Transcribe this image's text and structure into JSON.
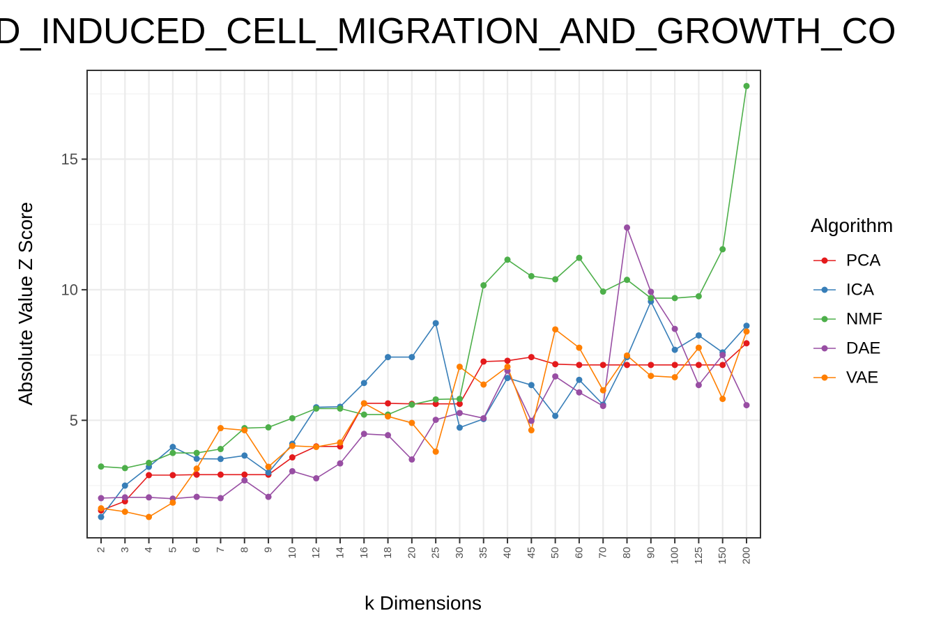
{
  "chart_data": {
    "type": "line",
    "title": "D_INDUCED_CELL_MIGRATION_AND_GROWTH_CO",
    "xlabel": "k Dimensions",
    "ylabel": "Absolute Value Z Score",
    "categories": [
      "2",
      "3",
      "4",
      "5",
      "6",
      "7",
      "8",
      "9",
      "10",
      "12",
      "14",
      "16",
      "18",
      "20",
      "25",
      "30",
      "35",
      "40",
      "45",
      "50",
      "60",
      "70",
      "80",
      "90",
      "100",
      "125",
      "150",
      "200"
    ],
    "y_ticks": [
      5,
      10,
      15
    ],
    "ylim": [
      0.5,
      18.4
    ],
    "grid": true,
    "legend": {
      "title": "Algorithm",
      "position": "right"
    },
    "series": [
      {
        "name": "PCA",
        "color": "#e41a1c",
        "values": [
          1.55,
          1.9,
          2.9,
          2.9,
          2.92,
          2.92,
          2.92,
          2.92,
          3.58,
          4.0,
          4.0,
          5.65,
          5.65,
          5.63,
          5.63,
          5.63,
          7.25,
          7.28,
          7.42,
          7.15,
          7.12,
          7.12,
          7.12,
          7.12,
          7.12,
          7.12,
          7.12,
          7.95
        ]
      },
      {
        "name": "ICA",
        "color": "#377eb8",
        "values": [
          1.3,
          2.5,
          3.22,
          3.98,
          3.53,
          3.52,
          3.65,
          3.0,
          4.1,
          5.5,
          5.52,
          6.43,
          7.42,
          7.42,
          8.72,
          4.72,
          5.05,
          6.62,
          6.35,
          5.17,
          6.55,
          5.6,
          7.42,
          9.55,
          7.7,
          8.25,
          7.6,
          8.62
        ]
      },
      {
        "name": "NMF",
        "color": "#4daf4a",
        "values": [
          3.23,
          3.17,
          3.37,
          3.75,
          3.75,
          3.9,
          4.7,
          4.73,
          5.08,
          5.45,
          5.45,
          5.22,
          5.22,
          5.6,
          5.8,
          5.82,
          10.17,
          11.15,
          10.52,
          10.4,
          11.22,
          9.93,
          10.38,
          9.68,
          9.68,
          9.75,
          11.55,
          17.8
        ]
      },
      {
        "name": "DAE",
        "color": "#984ea3",
        "values": [
          2.02,
          2.05,
          2.05,
          2.0,
          2.07,
          2.02,
          2.7,
          2.07,
          3.05,
          2.78,
          3.35,
          4.48,
          4.43,
          3.5,
          5.02,
          5.28,
          5.08,
          6.9,
          4.98,
          6.68,
          6.07,
          5.55,
          12.38,
          9.92,
          8.5,
          6.35,
          7.5,
          5.58
        ]
      },
      {
        "name": "VAE",
        "color": "#ff7f00",
        "values": [
          1.63,
          1.5,
          1.3,
          1.85,
          3.15,
          4.7,
          4.62,
          3.22,
          4.02,
          3.98,
          4.15,
          5.65,
          5.15,
          4.9,
          3.8,
          7.05,
          6.37,
          7.05,
          4.62,
          8.48,
          7.78,
          6.15,
          7.48,
          6.7,
          6.65,
          7.78,
          5.82,
          8.4
        ]
      }
    ]
  }
}
